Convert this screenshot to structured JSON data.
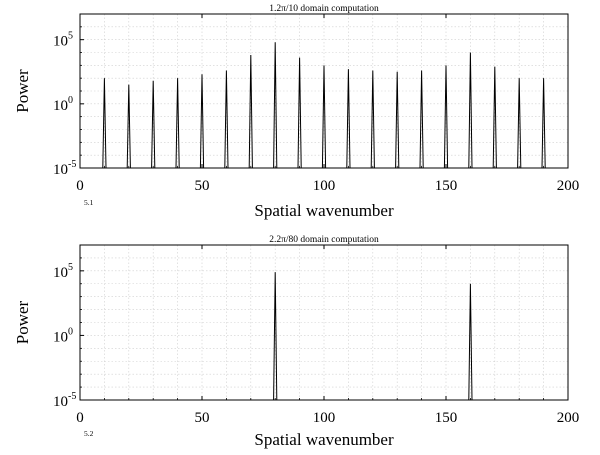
{
  "chart_data": [
    {
      "type": "line",
      "title": "1.2π/10 domain computation",
      "xlabel": "Spatial wavenumber",
      "ylabel": "Power",
      "panel_label": "5.1",
      "xlim": [
        0,
        200
      ],
      "ylim_exponents": [
        -5,
        7
      ],
      "y_scale": "log",
      "grid": true,
      "xticks": [
        "0",
        "50",
        "100",
        "150",
        "200"
      ],
      "yticks": [
        {
          "base": "10",
          "exp": "5",
          "value": 5
        },
        {
          "base": "10",
          "exp": "0",
          "value": 0
        },
        {
          "base": "10",
          "exp": "-5",
          "value": -5
        }
      ],
      "series": [
        {
          "x": [
            10,
            20,
            30,
            40,
            50,
            60,
            70,
            80,
            90,
            100,
            110,
            120,
            130,
            140,
            150,
            160,
            170,
            180,
            190
          ],
          "log10_power": [
            2.0,
            1.5,
            1.8,
            2.0,
            2.3,
            2.6,
            3.8,
            4.8,
            3.6,
            3.0,
            2.7,
            2.6,
            2.5,
            2.6,
            3.0,
            4.0,
            2.9,
            2.0,
            2.0
          ]
        }
      ]
    },
    {
      "type": "line",
      "title": "2.2π/80 domain computation",
      "xlabel": "Spatial wavenumber",
      "ylabel": "Power",
      "panel_label": "5.2",
      "xlim": [
        0,
        200
      ],
      "ylim_exponents": [
        -5,
        7
      ],
      "y_scale": "log",
      "grid": true,
      "xticks": [
        "0",
        "50",
        "100",
        "150",
        "200"
      ],
      "yticks": [
        {
          "base": "10",
          "exp": "5",
          "value": 5
        },
        {
          "base": "10",
          "exp": "0",
          "value": 0
        },
        {
          "base": "10",
          "exp": "-5",
          "value": -5
        }
      ],
      "series": [
        {
          "x": [
            80,
            160
          ],
          "log10_power": [
            4.9,
            4.0
          ]
        }
      ]
    }
  ]
}
